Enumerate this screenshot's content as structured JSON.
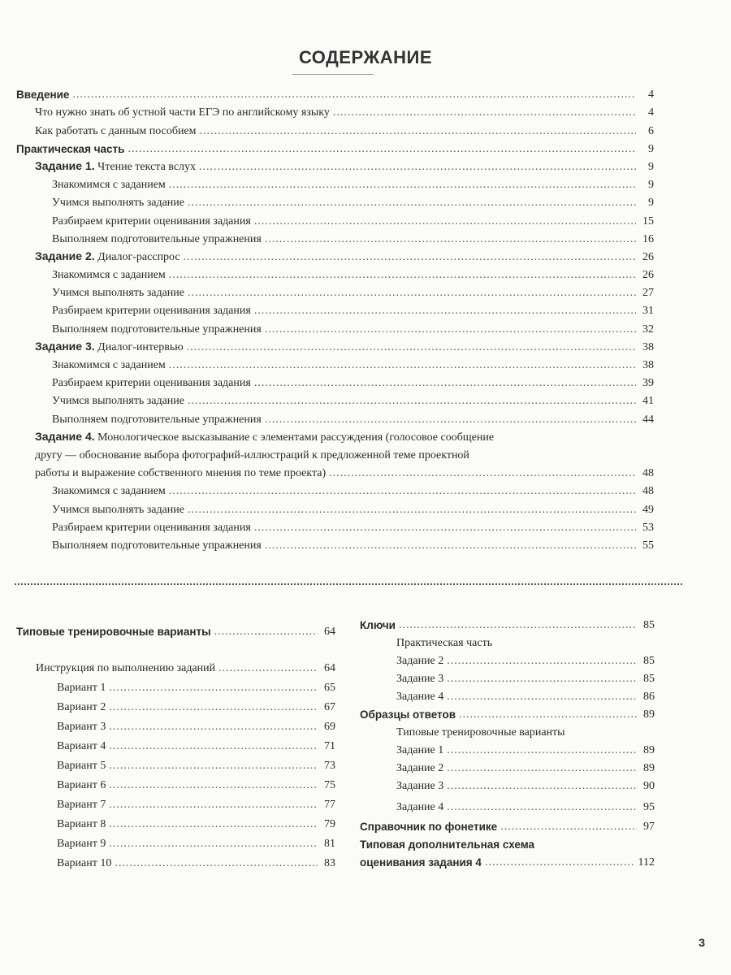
{
  "title": "СОДЕРЖАНИЕ",
  "page_number": "3",
  "top": [
    {
      "label": "Введение",
      "page": "4",
      "level": 0,
      "bold": true
    },
    {
      "label": "Что нужно знать об устной части ЕГЭ по английскому языку",
      "page": "4",
      "level": 1
    },
    {
      "label": "Как работать с данным пособием",
      "page": "6",
      "level": 1
    },
    {
      "label": "Практическая часть",
      "page": "9",
      "level": 0,
      "bold": true
    },
    {
      "prefix": "Задание 1.",
      "label": "Чтение текста вслух",
      "page": "9",
      "level": 1
    },
    {
      "label": "Знакомимся с заданием",
      "page": "9",
      "level": 2
    },
    {
      "label": "Учимся выполнять задание",
      "page": "9",
      "level": 2
    },
    {
      "label": "Разбираем критерии оценивания задания",
      "page": "15",
      "level": 2
    },
    {
      "label": "Выполняем подготовительные упражнения",
      "page": "16",
      "level": 2
    },
    {
      "prefix": "Задание 2.",
      "label": "Диалог-расспрос",
      "page": "26",
      "level": 1
    },
    {
      "label": "Знакомимся с заданием",
      "page": "26",
      "level": 2
    },
    {
      "label": "Учимся выполнять задание",
      "page": "27",
      "level": 2
    },
    {
      "label": "Разбираем критерии оценивания задания",
      "page": "31",
      "level": 2
    },
    {
      "label": "Выполняем подготовительные упражнения",
      "page": "32",
      "level": 2
    },
    {
      "prefix": "Задание 3.",
      "label": "Диалог-интервью",
      "page": "38",
      "level": 1
    },
    {
      "label": "Знакомимся с заданием",
      "page": "38",
      "level": 2
    },
    {
      "label": "Разбираем критерии оценивания задания",
      "page": "39",
      "level": 2
    },
    {
      "label": "Учимся выполнять задание",
      "page": "41",
      "level": 2
    },
    {
      "label": "Выполняем подготовительные упражнения",
      "page": "44",
      "level": 2
    },
    {
      "prefix": "Задание 4.",
      "label": "Монологическое высказывание с элементами рассуждения (голосовое сообщение",
      "level": 1,
      "plain": true
    },
    {
      "label": "другу — обоснование выбора фотографий-иллюстраций к предложенной теме проектной",
      "level": 1,
      "plain": true
    },
    {
      "label": "работы и выражение собственного мнения по теме проекта)",
      "page": "48",
      "level": 1
    },
    {
      "label": "Знакомимся с заданием",
      "page": "48",
      "level": 2
    },
    {
      "label": "Учимся выполнять задание",
      "page": "49",
      "level": 2
    },
    {
      "label": "Разбираем критерии оценивания задания",
      "page": "53",
      "level": 2
    },
    {
      "label": "Выполняем подготовительные упражнения",
      "page": "55",
      "level": 2
    }
  ],
  "left": [
    {
      "label": "Типовые тренировочные варианты",
      "page": "64",
      "level": 0,
      "bold": true
    },
    {
      "label": "Инструкция по выполнению заданий",
      "page": "64",
      "level": 1
    },
    {
      "label": "Вариант 1",
      "page": "65",
      "level": 2
    },
    {
      "label": "Вариант 2",
      "page": "67",
      "level": 2
    },
    {
      "label": "Вариант 3",
      "page": "69",
      "level": 2
    },
    {
      "label": "Вариант 4",
      "page": "71",
      "level": 2
    },
    {
      "label": "Вариант 5",
      "page": "73",
      "level": 2
    },
    {
      "label": "Вариант 6",
      "page": "75",
      "level": 2
    },
    {
      "label": "Вариант 7",
      "page": "77",
      "level": 2
    },
    {
      "label": "Вариант 8",
      "page": "79",
      "level": 2
    },
    {
      "label": "Вариант 9",
      "page": "81",
      "level": 2
    },
    {
      "label": "Вариант 10",
      "page": "83",
      "level": 2
    }
  ],
  "right": [
    {
      "label": "Ключи",
      "page": "85",
      "level": 0,
      "bold": true
    },
    {
      "label": "Практическая часть",
      "level": 1,
      "plain": true
    },
    {
      "label": "Задание 2",
      "page": "85",
      "level": 2
    },
    {
      "label": "Задание 3",
      "page": "85",
      "level": 2
    },
    {
      "label": "Задание 4",
      "page": "86",
      "level": 2
    },
    {
      "label": "Образцы ответов",
      "page": "89",
      "level": 0,
      "bold": true
    },
    {
      "label": "Типовые тренировочные варианты",
      "level": 1,
      "plain": true
    },
    {
      "label": "Задание 1",
      "page": "89",
      "level": 2
    },
    {
      "label": "Задание 2",
      "page": "89",
      "level": 2
    },
    {
      "label": "Задание 3",
      "page": "90",
      "level": 2
    },
    {
      "label": "Задание 4",
      "page": "95",
      "level": 2
    },
    {
      "label": "Справочник по фонетике",
      "page": "97",
      "level": 0,
      "bold": true
    },
    {
      "label": "Типовая дополнительная схема",
      "level": 0,
      "bold": true,
      "plain": true
    },
    {
      "label": "оценивания задания 4",
      "page": "112",
      "level": 0,
      "bold": true
    }
  ]
}
